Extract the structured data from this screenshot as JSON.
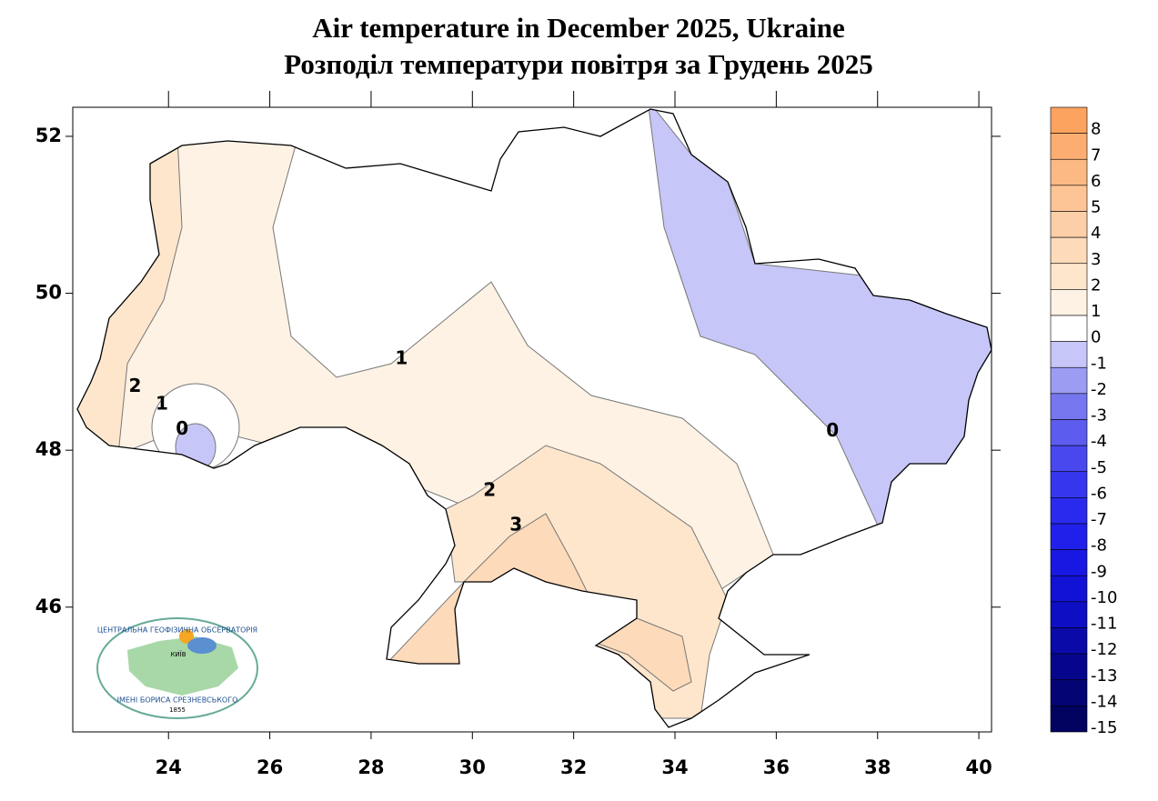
{
  "title": "Air temperature in December 2025, Ukraine",
  "subtitle": "Розподіл температури повітря за Грудень 2025",
  "map": {
    "xlim": [
      22.11,
      40.25
    ],
    "ylim": [
      44.41,
      52.37
    ],
    "xticks": [
      24,
      26,
      28,
      30,
      32,
      34,
      36,
      38,
      40
    ],
    "yticks": [
      46,
      48,
      50,
      52
    ],
    "contour_labels": [
      {
        "value": 1,
        "lon": 28.6,
        "lat": 49.16
      },
      {
        "value": 2,
        "lon": 23.34,
        "lat": 48.81
      },
      {
        "value": 1,
        "lon": 23.87,
        "lat": 48.58
      },
      {
        "value": 0,
        "lon": 24.27,
        "lat": 48.26
      },
      {
        "value": 2,
        "lon": 30.34,
        "lat": 47.48
      },
      {
        "value": 3,
        "lon": 30.86,
        "lat": 47.04
      },
      {
        "value": 0,
        "lon": 37.11,
        "lat": 48.24
      }
    ]
  },
  "colorbar": {
    "levels": [
      8,
      7,
      6,
      5,
      4,
      3,
      2,
      1,
      0,
      -1,
      -2,
      -3,
      -4,
      -5,
      -6,
      -7,
      -8,
      -9,
      -10,
      -11,
      -12,
      -13,
      -14,
      -15
    ],
    "colors": [
      "#fca35f",
      "#fcae72",
      "#fcb984",
      "#fdc496",
      "#fdcfa8",
      "#fddab9",
      "#fde6cc",
      "#fdf2e4",
      "#ffffff",
      "#c6c6f8",
      "#9c9cf3",
      "#7676ef",
      "#5c5cee",
      "#4848ee",
      "#3636ee",
      "#2a2aee",
      "#2020ea",
      "#1818e2",
      "#1212d6",
      "#0e0ec4",
      "#0a0aa8",
      "#06068c",
      "#040474",
      "#020260"
    ]
  },
  "logo": {
    "top_text": "ЦЕНТРАЛЬНА ГЕОФІЗИЧНА ОБСЕРВАТОРІЯ",
    "city": "КИЇВ",
    "bottom_text": "ІМЕНІ БОРИСА СРЕЗНЕВСЬКОГО",
    "year": "1855"
  }
}
